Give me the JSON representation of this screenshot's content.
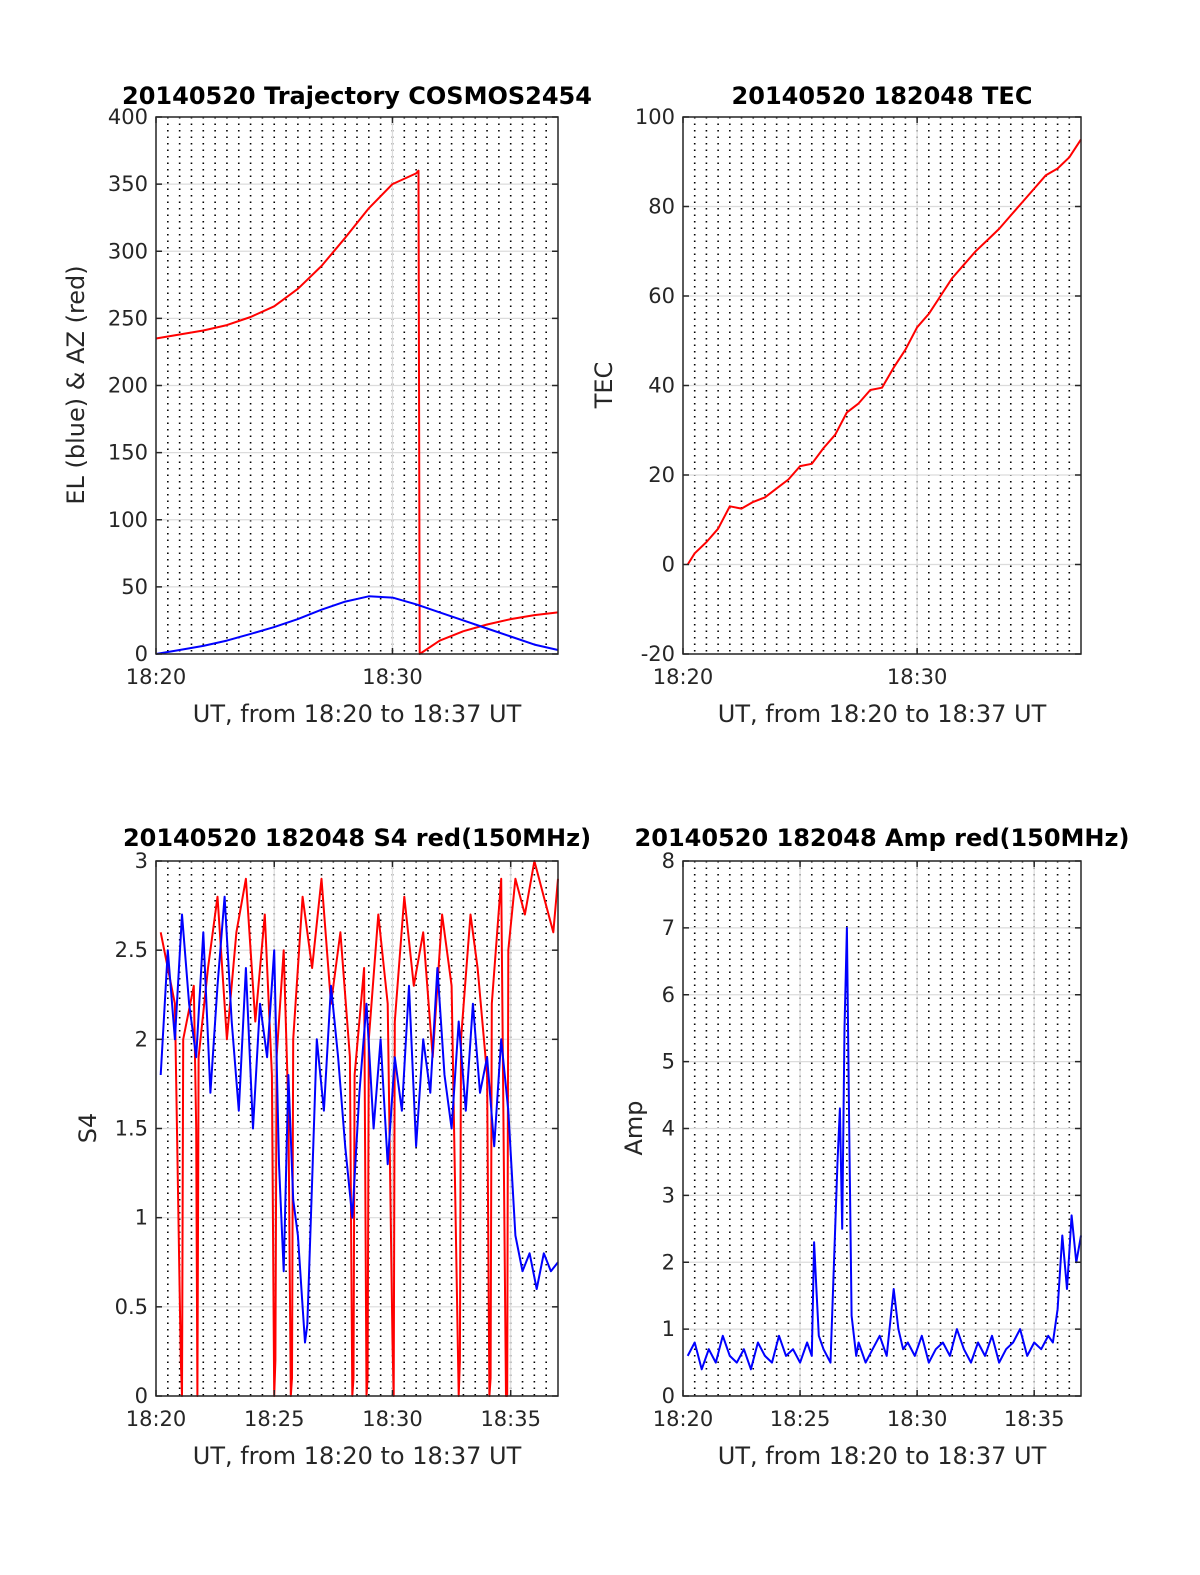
{
  "colors": {
    "az": "#ff0000",
    "el": "#0000ff",
    "tec": "#ff0000",
    "s4_red": "#ff0000",
    "s4_blue": "#0000ff",
    "amp": "#0000ff"
  },
  "chart_data": [
    {
      "id": "trajectory",
      "type": "line",
      "title": "20140520 Trajectory COSMOS2454",
      "xlabel": "UT, from 18:20 to 18:37 UT",
      "ylabel": "EL (blue) & AZ (red)",
      "xlim": [
        0,
        17
      ],
      "ylim": [
        0,
        400
      ],
      "x_ticks": [
        {
          "value": 0,
          "label": "18:20"
        },
        {
          "value": 10,
          "label": "18:30"
        }
      ],
      "y_ticks": [
        {
          "value": 0,
          "label": "0"
        },
        {
          "value": 50,
          "label": "50"
        },
        {
          "value": 100,
          "label": "100"
        },
        {
          "value": 150,
          "label": "150"
        },
        {
          "value": 200,
          "label": "200"
        },
        {
          "value": 250,
          "label": "250"
        },
        {
          "value": 300,
          "label": "300"
        },
        {
          "value": 350,
          "label": "350"
        },
        {
          "value": 400,
          "label": "400"
        }
      ],
      "grid": "dotted vertical lines every 30 s plus major grid",
      "series": [
        {
          "color": "#ff0000",
          "x": [
            0,
            1,
            2,
            3,
            4,
            5,
            6,
            7,
            8,
            9,
            10,
            11,
            11.1,
            11.15,
            12,
            13,
            14,
            15,
            16,
            17
          ],
          "y": [
            235,
            238,
            241,
            245,
            251,
            259,
            272,
            289,
            310,
            332,
            350,
            358,
            360,
            0,
            10,
            17,
            22,
            26,
            29,
            31
          ]
        },
        {
          "color": "#0000ff",
          "x": [
            0,
            1,
            2,
            3,
            4,
            5,
            6,
            7,
            8,
            9,
            10,
            11,
            12,
            13,
            14,
            15,
            16,
            17
          ],
          "y": [
            0,
            3,
            6,
            10,
            15,
            20,
            26,
            33,
            39,
            43,
            42,
            37,
            31,
            25,
            19,
            13,
            7,
            3
          ]
        }
      ]
    },
    {
      "id": "tec",
      "type": "line",
      "title": "20140520 182048 TEC",
      "xlabel": "UT, from 18:20 to 18:37 UT",
      "ylabel": "TEC",
      "xlim": [
        0,
        17
      ],
      "ylim": [
        -20,
        100
      ],
      "x_ticks": [
        {
          "value": 0,
          "label": "18:20"
        },
        {
          "value": 10,
          "label": "18:30"
        }
      ],
      "y_ticks": [
        {
          "value": -20,
          "label": "-20"
        },
        {
          "value": 0,
          "label": "0"
        },
        {
          "value": 20,
          "label": "20"
        },
        {
          "value": 40,
          "label": "40"
        },
        {
          "value": 60,
          "label": "60"
        },
        {
          "value": 80,
          "label": "80"
        },
        {
          "value": 100,
          "label": "100"
        }
      ],
      "grid": "dotted vertical lines every 30 s plus major grid",
      "series": [
        {
          "color": "#ff0000",
          "x": [
            0.2,
            0.5,
            1,
            1.5,
            2,
            2.5,
            3,
            3.5,
            4,
            4.5,
            5,
            5.5,
            6,
            6.5,
            7,
            7.5,
            8,
            8.5,
            9,
            9.5,
            10,
            10.5,
            11,
            11.5,
            12,
            12.5,
            13,
            13.5,
            14,
            14.5,
            15,
            15.5,
            16,
            16.5,
            17
          ],
          "y": [
            0,
            2.5,
            5,
            8,
            13,
            12.5,
            14,
            15,
            17,
            19,
            22,
            22.5,
            26,
            29,
            34,
            36,
            39,
            39.5,
            44,
            48,
            53,
            56,
            60,
            64,
            67,
            70,
            72.5,
            75,
            78,
            81,
            84,
            87,
            88.5,
            91,
            95
          ]
        }
      ]
    },
    {
      "id": "s4",
      "type": "line",
      "title": "20140520 182048 S4 red(150MHz)",
      "xlabel": "UT, from 18:20 to 18:37 UT",
      "ylabel": "S4",
      "xlim": [
        0,
        17
      ],
      "ylim": [
        0,
        3
      ],
      "x_ticks": [
        {
          "value": 0,
          "label": "18:20"
        },
        {
          "value": 5,
          "label": "18:25"
        },
        {
          "value": 10,
          "label": "18:30"
        },
        {
          "value": 15,
          "label": "18:35"
        }
      ],
      "y_ticks": [
        {
          "value": 0,
          "label": "0"
        },
        {
          "value": 0.5,
          "label": "0.5"
        },
        {
          "value": 1,
          "label": "1"
        },
        {
          "value": 1.5,
          "label": "1.5"
        },
        {
          "value": 2,
          "label": "2"
        },
        {
          "value": 2.5,
          "label": "2.5"
        },
        {
          "value": 3,
          "label": "3"
        }
      ],
      "grid": "dotted vertical lines every 30 s plus major grid",
      "series": [
        {
          "color": "#ff0000",
          "x": [
            0.2,
            0.8,
            1.05,
            1.1,
            1.15,
            1.6,
            1.7,
            1.75,
            1.8,
            2.2,
            2.6,
            3.0,
            3.4,
            3.8,
            4.2,
            4.6,
            4.9,
            5.0,
            5.05,
            5.1,
            5.4,
            5.6,
            5.7,
            5.75,
            5.8,
            6.2,
            6.6,
            7.0,
            7.4,
            7.8,
            8.2,
            8.3,
            8.35,
            8.4,
            8.8,
            8.9,
            8.95,
            9.0,
            9.4,
            9.8,
            10.0,
            10.05,
            10.1,
            10.5,
            10.9,
            11.3,
            11.7,
            12.1,
            12.5,
            12.8,
            12.85,
            12.9,
            13.3,
            13.6,
            14.0,
            14.1,
            14.15,
            14.2,
            14.6,
            14.8,
            14.85,
            14.9,
            15.2,
            15.6,
            16.0,
            16.4,
            16.8,
            17.0
          ],
          "y": [
            2.6,
            2.2,
            0.2,
            0.0,
            2.0,
            2.3,
            1.5,
            0.0,
            1.9,
            2.4,
            2.8,
            2.0,
            2.6,
            2.9,
            2.1,
            2.7,
            1.8,
            0.0,
            0.2,
            1.9,
            2.5,
            1.6,
            0.0,
            0.1,
            2.0,
            2.8,
            2.4,
            2.9,
            2.2,
            2.6,
            1.9,
            0.0,
            0.1,
            1.8,
            2.4,
            0.0,
            0.1,
            2.0,
            2.7,
            2.2,
            0.3,
            0.0,
            2.1,
            2.8,
            2.3,
            2.6,
            1.9,
            2.7,
            2.3,
            0.0,
            0.2,
            2.0,
            2.7,
            2.4,
            1.8,
            0.0,
            0.1,
            2.2,
            2.9,
            0.0,
            0.0,
            2.5,
            2.9,
            2.7,
            3.0,
            2.8,
            2.6,
            2.9
          ]
        },
        {
          "color": "#0000ff",
          "x": [
            0.2,
            0.5,
            0.8,
            1.1,
            1.4,
            1.7,
            2.0,
            2.3,
            2.6,
            2.9,
            3.2,
            3.5,
            3.8,
            4.1,
            4.4,
            4.7,
            5.0,
            5.2,
            5.4,
            5.6,
            5.8,
            6.0,
            6.2,
            6.3,
            6.4,
            6.6,
            6.8,
            7.1,
            7.4,
            7.7,
            8.0,
            8.3,
            8.6,
            8.9,
            9.2,
            9.5,
            9.8,
            10.1,
            10.4,
            10.7,
            11.0,
            11.3,
            11.6,
            11.9,
            12.2,
            12.5,
            12.8,
            13.1,
            13.4,
            13.7,
            14.0,
            14.3,
            14.6,
            14.9,
            15.2,
            15.5,
            15.8,
            16.1,
            16.4,
            16.7,
            17.0
          ],
          "y": [
            1.8,
            2.5,
            2.0,
            2.7,
            2.2,
            1.9,
            2.6,
            1.7,
            2.3,
            2.8,
            2.1,
            1.6,
            2.4,
            1.5,
            2.2,
            1.9,
            2.5,
            1.3,
            0.7,
            1.8,
            1.1,
            0.9,
            0.5,
            0.3,
            0.4,
            1.2,
            2.0,
            1.6,
            2.3,
            1.9,
            1.4,
            1.0,
            1.7,
            2.2,
            1.5,
            2.0,
            1.3,
            1.9,
            1.6,
            2.3,
            1.4,
            2.0,
            1.7,
            2.4,
            1.8,
            1.5,
            2.1,
            1.6,
            2.2,
            1.7,
            1.9,
            1.4,
            2.0,
            1.6,
            0.9,
            0.7,
            0.8,
            0.6,
            0.8,
            0.7,
            0.75
          ]
        }
      ]
    },
    {
      "id": "amp",
      "type": "line",
      "title": "20140520 182048 Amp red(150MHz)",
      "xlabel": "UT, from 18:20 to 18:37 UT",
      "ylabel": "Amp",
      "xlim": [
        0,
        17
      ],
      "ylim": [
        0,
        8
      ],
      "x_ticks": [
        {
          "value": 0,
          "label": "18:20"
        },
        {
          "value": 5,
          "label": "18:25"
        },
        {
          "value": 10,
          "label": "18:30"
        },
        {
          "value": 15,
          "label": "18:35"
        }
      ],
      "y_ticks": [
        {
          "value": 0,
          "label": "0"
        },
        {
          "value": 1,
          "label": "1"
        },
        {
          "value": 2,
          "label": "2"
        },
        {
          "value": 3,
          "label": "3"
        },
        {
          "value": 4,
          "label": "4"
        },
        {
          "value": 5,
          "label": "5"
        },
        {
          "value": 6,
          "label": "6"
        },
        {
          "value": 7,
          "label": "7"
        },
        {
          "value": 8,
          "label": "8"
        }
      ],
      "grid": "dotted vertical lines every 30 s plus major grid",
      "series": [
        {
          "color": "#0000ff",
          "x": [
            0.2,
            0.5,
            0.8,
            1.1,
            1.4,
            1.7,
            2.0,
            2.3,
            2.6,
            2.9,
            3.2,
            3.5,
            3.8,
            4.1,
            4.4,
            4.7,
            5.0,
            5.3,
            5.5,
            5.6,
            5.7,
            5.8,
            6.0,
            6.3,
            6.6,
            6.7,
            6.8,
            6.9,
            7.0,
            7.1,
            7.2,
            7.3,
            7.4,
            7.5,
            7.8,
            8.1,
            8.4,
            8.7,
            9.0,
            9.2,
            9.4,
            9.6,
            9.9,
            10.2,
            10.5,
            10.8,
            11.1,
            11.4,
            11.7,
            12.0,
            12.3,
            12.6,
            12.9,
            13.2,
            13.5,
            13.8,
            14.1,
            14.4,
            14.7,
            15.0,
            15.3,
            15.6,
            15.8,
            16.0,
            16.2,
            16.4,
            16.6,
            16.8,
            17.0
          ],
          "y": [
            0.6,
            0.8,
            0.4,
            0.7,
            0.5,
            0.9,
            0.6,
            0.5,
            0.7,
            0.4,
            0.8,
            0.6,
            0.5,
            0.9,
            0.6,
            0.7,
            0.5,
            0.8,
            0.6,
            2.3,
            1.6,
            0.9,
            0.7,
            0.5,
            3.5,
            4.3,
            2.5,
            5.5,
            7.0,
            4.0,
            1.2,
            0.9,
            0.6,
            0.8,
            0.5,
            0.7,
            0.9,
            0.6,
            1.6,
            1.0,
            0.7,
            0.8,
            0.6,
            0.9,
            0.5,
            0.7,
            0.8,
            0.6,
            1.0,
            0.7,
            0.5,
            0.8,
            0.6,
            0.9,
            0.5,
            0.7,
            0.8,
            1.0,
            0.6,
            0.8,
            0.7,
            0.9,
            0.8,
            1.3,
            2.4,
            1.6,
            2.7,
            2.0,
            2.4
          ]
        }
      ]
    }
  ]
}
